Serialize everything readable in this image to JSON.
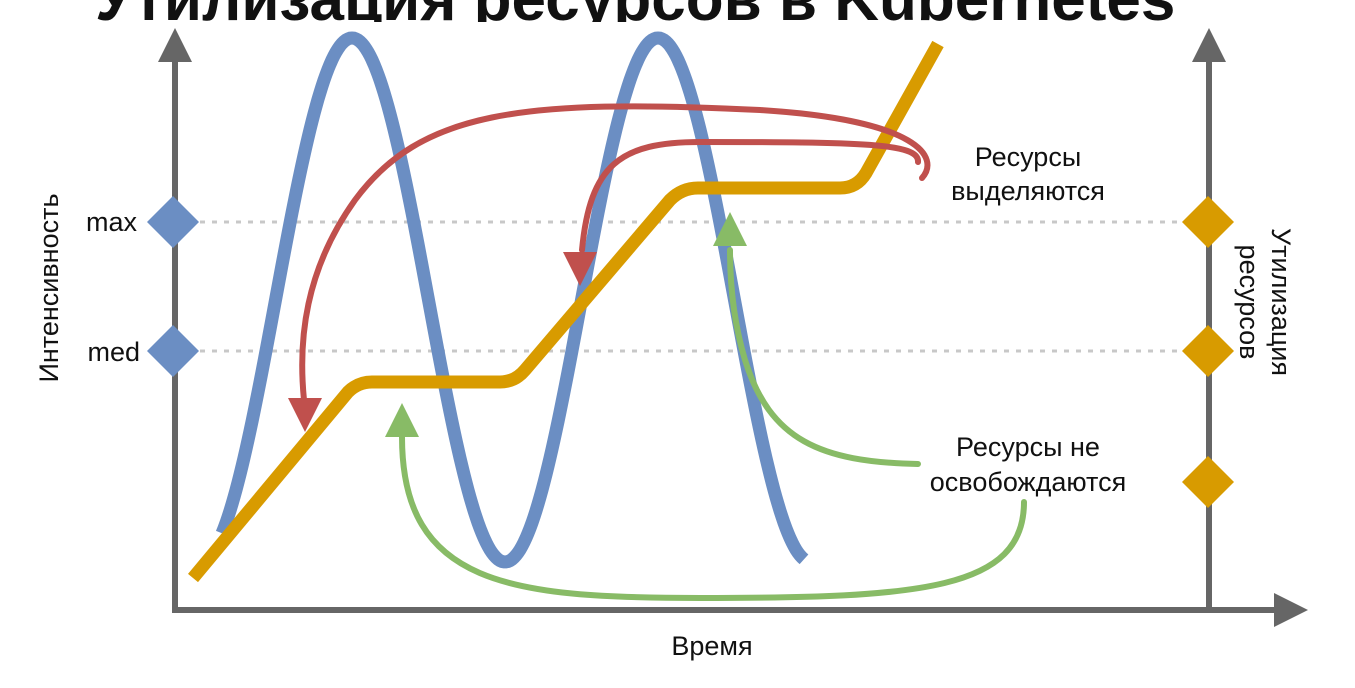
{
  "title": "Утилизация ресурсов в Kubernetes",
  "axes": {
    "y_left_label": "Интенсивность",
    "y_right_label_line1": "Утилизация",
    "y_right_label_line2": "ресурсов",
    "x_label": "Время"
  },
  "levels": {
    "max": "max",
    "med": "med"
  },
  "annotations": {
    "allocated_line1": "Ресурсы",
    "allocated_line2": "выделяются",
    "not_freed_line1": "Ресурсы не",
    "not_freed_line2": "освобождаются"
  },
  "colors": {
    "load": "#6b8ec3",
    "utilization": "#d89b00",
    "allocate_arrow": "#c0504d",
    "not_freed_arrow": "#88bb66",
    "axis": "#666666"
  }
}
